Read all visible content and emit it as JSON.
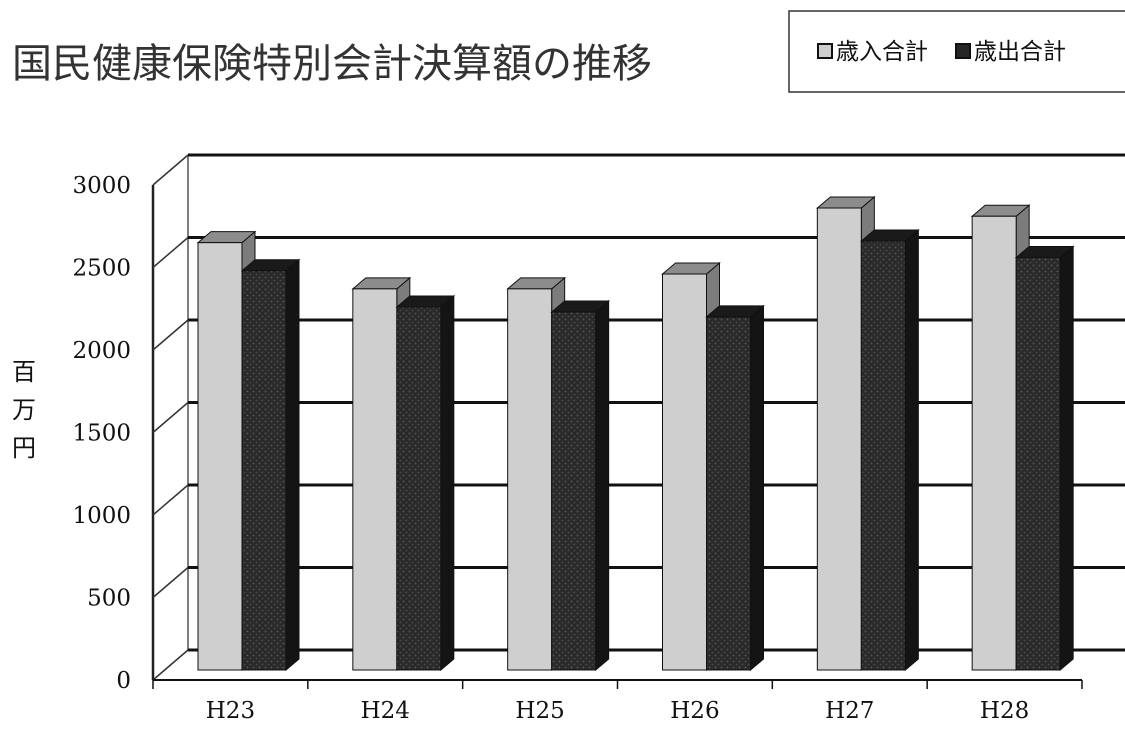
{
  "chart_data": {
    "type": "bar",
    "title": "国民健康保険特別会計決算額の推移",
    "ylabel": "百万円",
    "xlabel": "",
    "categories": [
      "H23",
      "H24",
      "H25",
      "H26",
      "H27",
      "H28"
    ],
    "series": [
      {
        "name": "歳入合計",
        "values": [
          2590,
          2310,
          2310,
          2400,
          2800,
          2750
        ],
        "color": "#cfcfcf"
      },
      {
        "name": "歳出合計",
        "values": [
          2420,
          2200,
          2170,
          2140,
          2600,
          2500
        ],
        "color": "#262626"
      }
    ],
    "ylim": [
      0,
      3000
    ],
    "yticks": [
      0,
      500,
      1000,
      1500,
      2000,
      2500,
      3000
    ],
    "grid": true,
    "legend_position": "top-right",
    "style": "3d-clustered-bar"
  }
}
